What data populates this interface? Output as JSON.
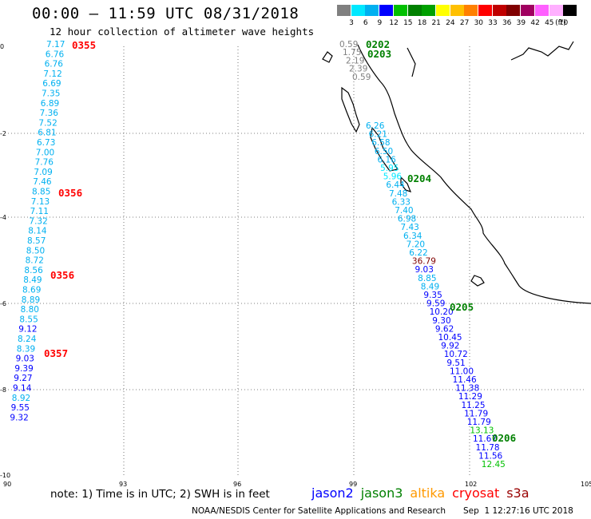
{
  "title": "00:00 – 11:59 UTC 08/31/2018",
  "subtitle": "12 hour collection of altimeter wave heights",
  "legend": {
    "unit": "(ft)",
    "bins": [
      {
        "label": "3",
        "color": "#808080"
      },
      {
        "label": "6",
        "color": "#00e8ff"
      },
      {
        "label": "9",
        "color": "#00b0f0"
      },
      {
        "label": "12",
        "color": "#0000ff"
      },
      {
        "label": "15",
        "color": "#00c000"
      },
      {
        "label": "18",
        "color": "#008000"
      },
      {
        "label": "21",
        "color": "#00a000"
      },
      {
        "label": "24",
        "color": "#ffff00"
      },
      {
        "label": "27",
        "color": "#ffc000"
      },
      {
        "label": "30",
        "color": "#ff8000"
      },
      {
        "label": "33",
        "color": "#ff0000"
      },
      {
        "label": "36",
        "color": "#c00000"
      },
      {
        "label": "39",
        "color": "#800000"
      },
      {
        "label": "42",
        "color": "#a00060"
      },
      {
        "label": "45",
        "color": "#ff60ff"
      },
      {
        "label": "70",
        "color": "#ffb0ff"
      },
      {
        "label": "",
        "color": "#000000"
      }
    ]
  },
  "axes": {
    "x_ticks": [
      "90",
      "93",
      "96",
      "99",
      "102",
      "105"
    ],
    "y_ticks": [
      "0",
      "-2",
      "-4",
      "-6",
      "-8",
      "-10"
    ]
  },
  "tracks": [
    {
      "values": [
        "7.17",
        "6.76",
        "6.76",
        "7.12",
        "6.69",
        "7.35",
        "6.89",
        "7.36",
        "7.52",
        "6.81",
        "6.73",
        "7.00",
        "7.76",
        "7.09",
        "7.46",
        "8.85",
        "7.13",
        "7.11",
        "7.32",
        "8.14",
        "8.57",
        "8.50",
        "8.72",
        "8.56",
        "8.49",
        "8.69",
        "8.89",
        "8.80",
        "8.55",
        "9.12",
        "8.24",
        "8.39",
        "9.03",
        "9.39",
        "9.27",
        "9.14",
        "8.92",
        "9.55",
        "9.32"
      ]
    },
    {
      "values": [
        "0.59",
        "1.75",
        "2.19",
        "2.39",
        "0.59"
      ]
    },
    {
      "values": [
        "6.26",
        "6.21",
        "6.58",
        "6.50",
        "6.16",
        "5.95",
        "5.96",
        "6.44",
        "7.48",
        "6.33",
        "7.40",
        "6.98",
        "7.43",
        "6.34",
        "7.20",
        "6.22",
        "36.79",
        "9.03",
        "8.85",
        "8.49",
        "9.35",
        "9.59",
        "10.20",
        "9.30",
        "9.62",
        "10.45",
        "9.92",
        "10.72",
        "9.51",
        "11.00",
        "11.46",
        "11.38",
        "11.29",
        "11.25",
        "11.79",
        "11.79",
        "13.13",
        "11.67",
        "11.78",
        "11.56",
        "12.45"
      ]
    }
  ],
  "time_labels": [
    "0355",
    "0356",
    "0356",
    "0357",
    "0202",
    "0203",
    "0204",
    "0205",
    "0206"
  ],
  "note": "note: 1) Time is in UTC; 2) SWH is in feet",
  "satellites": [
    {
      "name": "jason2",
      "color": "#0000ff"
    },
    {
      "name": "jason3",
      "color": "#008000"
    },
    {
      "name": "altika",
      "color": "#ff9900"
    },
    {
      "name": "cryosat",
      "color": "#ff0000"
    },
    {
      "name": "s3a",
      "color": "#990000"
    }
  ],
  "credit": "NOAA/NESDIS Center for Satellite Applications and Research",
  "timestamp": "Sep  1 12:27:16 UTC 2018"
}
